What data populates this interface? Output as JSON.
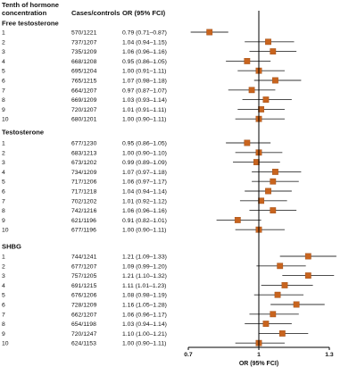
{
  "header": {
    "col1": [
      "Tenth of hormone",
      "concentration"
    ],
    "col2": "Cases/controls",
    "col3": "OR (95% FCI)"
  },
  "xaxis": {
    "label": "OR (95% FCI)",
    "ticks": [
      {
        "value": 0.7,
        "label": "0.7"
      },
      {
        "value": 1,
        "label": "1"
      },
      {
        "value": 1.3,
        "label": "1.3"
      }
    ],
    "reference_line": 1,
    "xlim": [
      0.7,
      1.3
    ]
  },
  "colors": {
    "marker": "#c8641e",
    "ci": "#333333",
    "text": "#111111",
    "axis": "#000000"
  },
  "chart_data": {
    "type": "forest",
    "xlabel": "OR (95% FCI)",
    "xlim": [
      0.7,
      1.3
    ],
    "reference_line": 1,
    "groups": [
      {
        "name": "Free testosterone",
        "rows": [
          {
            "tenth": "1",
            "cases_controls": "570/1221",
            "or_text": "0.79 (0.71–0.87)",
            "or": 0.79,
            "lo": 0.71,
            "hi": 0.87
          },
          {
            "tenth": "2",
            "cases_controls": "737/1207",
            "or_text": "1.04 (0.94–1.15)",
            "or": 1.04,
            "lo": 0.94,
            "hi": 1.15
          },
          {
            "tenth": "3",
            "cases_controls": "735/1209",
            "or_text": "1.06 (0.96–1.16)",
            "or": 1.06,
            "lo": 0.96,
            "hi": 1.16
          },
          {
            "tenth": "4",
            "cases_controls": "668/1208",
            "or_text": "0.95 (0.86–1.05)",
            "or": 0.95,
            "lo": 0.86,
            "hi": 1.05
          },
          {
            "tenth": "5",
            "cases_controls": "695/1204",
            "or_text": "1.00 (0.91–1.11)",
            "or": 1.0,
            "lo": 0.91,
            "hi": 1.11
          },
          {
            "tenth": "6",
            "cases_controls": "765/1215",
            "or_text": "1.07 (0.98–1.18)",
            "or": 1.07,
            "lo": 0.98,
            "hi": 1.18
          },
          {
            "tenth": "7",
            "cases_controls": "664/1207",
            "or_text": "0.97 (0.87–1.07)",
            "or": 0.97,
            "lo": 0.87,
            "hi": 1.07
          },
          {
            "tenth": "8",
            "cases_controls": "669/1209",
            "or_text": "1.03 (0.93–1.14)",
            "or": 1.03,
            "lo": 0.93,
            "hi": 1.14
          },
          {
            "tenth": "9",
            "cases_controls": "720/1207",
            "or_text": "1.01 (0.91–1.11)",
            "or": 1.01,
            "lo": 0.91,
            "hi": 1.11
          },
          {
            "tenth": "10",
            "cases_controls": "680/1201",
            "or_text": "1.00 (0.90–1.11)",
            "or": 1.0,
            "lo": 0.9,
            "hi": 1.11
          }
        ]
      },
      {
        "name": "Testosterone",
        "rows": [
          {
            "tenth": "1",
            "cases_controls": "677/1230",
            "or_text": "0.95 (0.86–1.05)",
            "or": 0.95,
            "lo": 0.86,
            "hi": 1.05
          },
          {
            "tenth": "2",
            "cases_controls": "683/1213",
            "or_text": "1.00 (0.90–1.10)",
            "or": 1.0,
            "lo": 0.9,
            "hi": 1.1
          },
          {
            "tenth": "3",
            "cases_controls": "673/1202",
            "or_text": "0.99 (0.89–1.09)",
            "or": 0.99,
            "lo": 0.89,
            "hi": 1.09
          },
          {
            "tenth": "4",
            "cases_controls": "734/1209",
            "or_text": "1.07 (0.97–1.18)",
            "or": 1.07,
            "lo": 0.97,
            "hi": 1.18
          },
          {
            "tenth": "5",
            "cases_controls": "717/1206",
            "or_text": "1.06 (0.97–1.17)",
            "or": 1.06,
            "lo": 0.97,
            "hi": 1.17
          },
          {
            "tenth": "6",
            "cases_controls": "717/1218",
            "or_text": "1.04 (0.94–1.14)",
            "or": 1.04,
            "lo": 0.94,
            "hi": 1.14
          },
          {
            "tenth": "7",
            "cases_controls": "702/1202",
            "or_text": "1.01 (0.92–1.12)",
            "or": 1.01,
            "lo": 0.92,
            "hi": 1.12
          },
          {
            "tenth": "8",
            "cases_controls": "742/1216",
            "or_text": "1.06 (0.96–1.16)",
            "or": 1.06,
            "lo": 0.96,
            "hi": 1.16
          },
          {
            "tenth": "9",
            "cases_controls": "621/1196",
            "or_text": "0.91 (0.82–1.01)",
            "or": 0.91,
            "lo": 0.82,
            "hi": 1.01
          },
          {
            "tenth": "10",
            "cases_controls": "677/1196",
            "or_text": "1.00 (0.90–1.11)",
            "or": 1.0,
            "lo": 0.9,
            "hi": 1.11
          }
        ]
      },
      {
        "name": "SHBG",
        "rows": [
          {
            "tenth": "1",
            "cases_controls": "744/1241",
            "or_text": "1.21 (1.09–1.33)",
            "or": 1.21,
            "lo": 1.09,
            "hi": 1.33
          },
          {
            "tenth": "2",
            "cases_controls": "677/1207",
            "or_text": "1.09 (0.99–1.20)",
            "or": 1.09,
            "lo": 0.99,
            "hi": 1.2
          },
          {
            "tenth": "3",
            "cases_controls": "757/1205",
            "or_text": "1.21 (1.10–1.32)",
            "or": 1.21,
            "lo": 1.1,
            "hi": 1.32
          },
          {
            "tenth": "4",
            "cases_controls": "691/1215",
            "or_text": "1.11 (1.01–1.23)",
            "or": 1.11,
            "lo": 1.01,
            "hi": 1.23
          },
          {
            "tenth": "5",
            "cases_controls": "676/1206",
            "or_text": "1.08 (0.98–1.19)",
            "or": 1.08,
            "lo": 0.98,
            "hi": 1.19
          },
          {
            "tenth": "6",
            "cases_controls": "728/1209",
            "or_text": "1.16 (1.05–1.28)",
            "or": 1.16,
            "lo": 1.05,
            "hi": 1.28
          },
          {
            "tenth": "7",
            "cases_controls": "662/1207",
            "or_text": "1.06 (0.96–1.17)",
            "or": 1.06,
            "lo": 0.96,
            "hi": 1.17
          },
          {
            "tenth": "8",
            "cases_controls": "654/1198",
            "or_text": "1.03 (0.94–1.14)",
            "or": 1.03,
            "lo": 0.94,
            "hi": 1.14
          },
          {
            "tenth": "9",
            "cases_controls": "720/1247",
            "or_text": "1.10 (1.00–1.21)",
            "or": 1.1,
            "lo": 1.0,
            "hi": 1.21
          },
          {
            "tenth": "10",
            "cases_controls": "624/1153",
            "or_text": "1.00 (0.90–1.11)",
            "or": 1.0,
            "lo": 0.9,
            "hi": 1.11
          }
        ]
      }
    ]
  }
}
